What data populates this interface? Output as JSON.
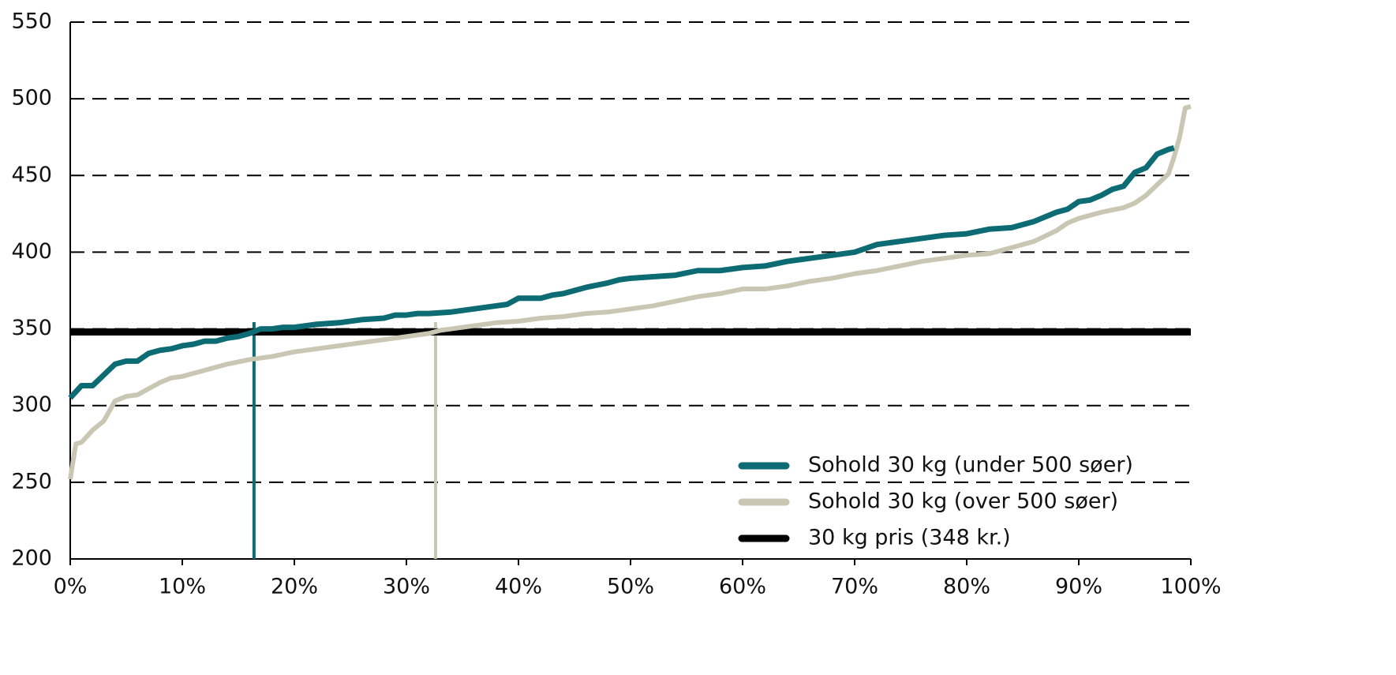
{
  "chart_data": {
    "type": "line",
    "xlim": [
      0,
      100
    ],
    "xticks": [
      {
        "value": 0,
        "label": "0%"
      },
      {
        "value": 10,
        "label": "10%"
      },
      {
        "value": 20,
        "label": "20%"
      },
      {
        "value": 30,
        "label": "30%"
      },
      {
        "value": 40,
        "label": "40%"
      },
      {
        "value": 50,
        "label": "50%"
      },
      {
        "value": 60,
        "label": "60%"
      },
      {
        "value": 70,
        "label": "70%"
      },
      {
        "value": 80,
        "label": "80%"
      },
      {
        "value": 90,
        "label": "90%"
      },
      {
        "value": 100,
        "label": "100%"
      }
    ],
    "ylim": [
      200,
      550
    ],
    "yticks": [
      200,
      250,
      300,
      350,
      400,
      450,
      500,
      550
    ],
    "grid": true,
    "legend": "lower right",
    "series": [
      {
        "name": "Sohold 30 kg (under 500 søer)",
        "color": "#0d6b73",
        "x": [
          0,
          1,
          2,
          3,
          4,
          5,
          6,
          7,
          8,
          9,
          10,
          11,
          12,
          13,
          14,
          15,
          16,
          17,
          18,
          19,
          20,
          22,
          24,
          26,
          28,
          29,
          30,
          31,
          32,
          34,
          36,
          38,
          39,
          40,
          42,
          43,
          44,
          46,
          48,
          49,
          50,
          52,
          54,
          56,
          58,
          60,
          62,
          64,
          66,
          68,
          70,
          72,
          74,
          76,
          78,
          80,
          82,
          84,
          86,
          88,
          89,
          90,
          91,
          92,
          93,
          94,
          95,
          96,
          97,
          98,
          98.5
        ],
        "values": [
          305,
          313,
          313,
          320,
          327,
          329,
          329,
          334,
          336,
          337,
          339,
          340,
          342,
          342,
          344,
          345,
          347,
          350,
          350,
          351,
          351,
          353,
          354,
          356,
          357,
          359,
          359,
          360,
          360,
          361,
          363,
          365,
          366,
          370,
          370,
          372,
          373,
          377,
          380,
          382,
          383,
          384,
          385,
          388,
          388,
          390,
          391,
          394,
          396,
          398,
          400,
          405,
          407,
          409,
          411,
          412,
          415,
          416,
          420,
          426,
          428,
          433,
          434,
          437,
          441,
          443,
          452,
          455,
          464,
          467,
          468
        ]
      },
      {
        "name": "Sohold 30 kg (over 500 søer)",
        "color": "#c9c7b3",
        "x": [
          0,
          0.5,
          1,
          2,
          3,
          4,
          5,
          6,
          7,
          8,
          9,
          10,
          11,
          12,
          14,
          16,
          18,
          20,
          22,
          24,
          26,
          28,
          30,
          32,
          33,
          34,
          36,
          38,
          40,
          42,
          44,
          46,
          48,
          50,
          52,
          54,
          56,
          58,
          60,
          62,
          64,
          66,
          68,
          70,
          72,
          74,
          76,
          78,
          80,
          82,
          84,
          86,
          88,
          89,
          90,
          92,
          94,
          95,
          96,
          97,
          98,
          98.5,
          99,
          99.5,
          100
        ],
        "values": [
          252,
          275,
          276,
          284,
          290,
          303,
          306,
          307,
          311,
          315,
          318,
          319,
          321,
          323,
          327,
          330,
          332,
          335,
          337,
          339,
          341,
          343,
          345,
          347,
          349,
          350,
          352,
          354,
          355,
          357,
          358,
          360,
          361,
          363,
          365,
          368,
          371,
          373,
          376,
          376,
          378,
          381,
          383,
          386,
          388,
          391,
          394,
          396,
          398,
          399,
          403,
          407,
          414,
          419,
          422,
          426,
          429,
          432,
          437,
          444,
          451,
          462,
          475,
          494,
          495
        ]
      },
      {
        "name": "30 kg pris (348 kr.)",
        "color": "#000000",
        "x": [
          0,
          100
        ],
        "values": [
          348,
          348
        ]
      }
    ],
    "vertical_lines": [
      {
        "x": 16.4,
        "color": "#0d6b73"
      },
      {
        "x": 32.6,
        "color": "#c9c7b3"
      }
    ]
  }
}
